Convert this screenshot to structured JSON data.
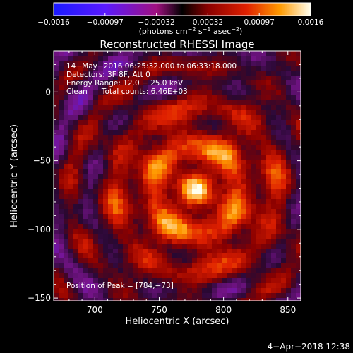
{
  "chart_data": {
    "type": "heatmap",
    "title": "Reconstructed RHESSI Image",
    "xlabel": "Heliocentric X (arcsec)",
    "ylabel": "Heliocentric Y (arcsec)",
    "xlim": [
      668,
      860
    ],
    "ylim": [
      -152,
      30
    ],
    "x_ticks": [
      700,
      750,
      800,
      850
    ],
    "x_tick_labels": [
      "700",
      "750",
      "800",
      "850"
    ],
    "y_ticks": [
      0,
      -50,
      -100,
      -150
    ],
    "y_tick_labels": [
      "0",
      "−50",
      "−100",
      "−150"
    ],
    "peak": {
      "x": 784,
      "y": -73
    },
    "colorbar": {
      "range": [
        -0.0016,
        0.0016
      ],
      "tick_labels": [
        "−0.0016",
        "−0.00097",
        "−0.00032",
        "0.00032",
        "0.00097",
        "0.0016"
      ],
      "unit_label": [
        "(photons cm",
        "−2",
        " s",
        "−1",
        " asec",
        "−2",
        ")"
      ]
    },
    "annotations": [
      "14−May−2016 06:25:32.000 to 06:33:18.000",
      "Detectors: 3F 8F, Att 0",
      "Energy Range: 12.0 − 25.0 keV",
      "Clean      Total counts: 6.46E+03"
    ],
    "peak_label": "Position of Peak = [784,−73]"
  },
  "footer": {
    "timestamp": "4−Apr−2018 12:38"
  }
}
